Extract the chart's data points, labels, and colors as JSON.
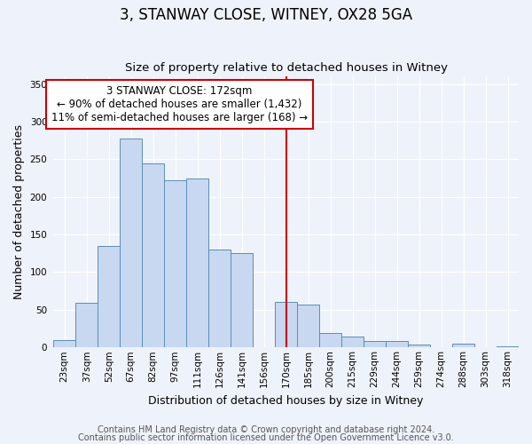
{
  "title": "3, STANWAY CLOSE, WITNEY, OX28 5GA",
  "subtitle": "Size of property relative to detached houses in Witney",
  "xlabel": "Distribution of detached houses by size in Witney",
  "ylabel": "Number of detached properties",
  "categories": [
    "23sqm",
    "37sqm",
    "52sqm",
    "67sqm",
    "82sqm",
    "97sqm",
    "111sqm",
    "126sqm",
    "141sqm",
    "156sqm",
    "170sqm",
    "185sqm",
    "200sqm",
    "215sqm",
    "229sqm",
    "244sqm",
    "259sqm",
    "274sqm",
    "288sqm",
    "303sqm",
    "318sqm"
  ],
  "bar_heights": [
    10,
    59,
    135,
    278,
    245,
    222,
    225,
    130,
    125,
    0,
    61,
    57,
    19,
    15,
    8,
    8,
    4,
    0,
    5,
    0,
    1
  ],
  "bar_color": "#c8d8f0",
  "bar_edge_color": "#5b8db8",
  "vline_x": 10.0,
  "vline_color": "#cc0000",
  "ylim": [
    0,
    360
  ],
  "yticks": [
    0,
    50,
    100,
    150,
    200,
    250,
    300,
    350
  ],
  "annotation_text": "3 STANWAY CLOSE: 172sqm\n← 90% of detached houses are smaller (1,432)\n11% of semi-detached houses are larger (168) →",
  "annotation_box_color": "#ffffff",
  "annotation_box_edge": "#cc0000",
  "footer1": "Contains HM Land Registry data © Crown copyright and database right 2024.",
  "footer2": "Contains public sector information licensed under the Open Government Licence v3.0.",
  "background_color": "#eef2fa",
  "title_fontsize": 12,
  "subtitle_fontsize": 9.5,
  "axis_label_fontsize": 9,
  "tick_fontsize": 7.5,
  "footer_fontsize": 7,
  "annotation_fontsize": 8.5
}
